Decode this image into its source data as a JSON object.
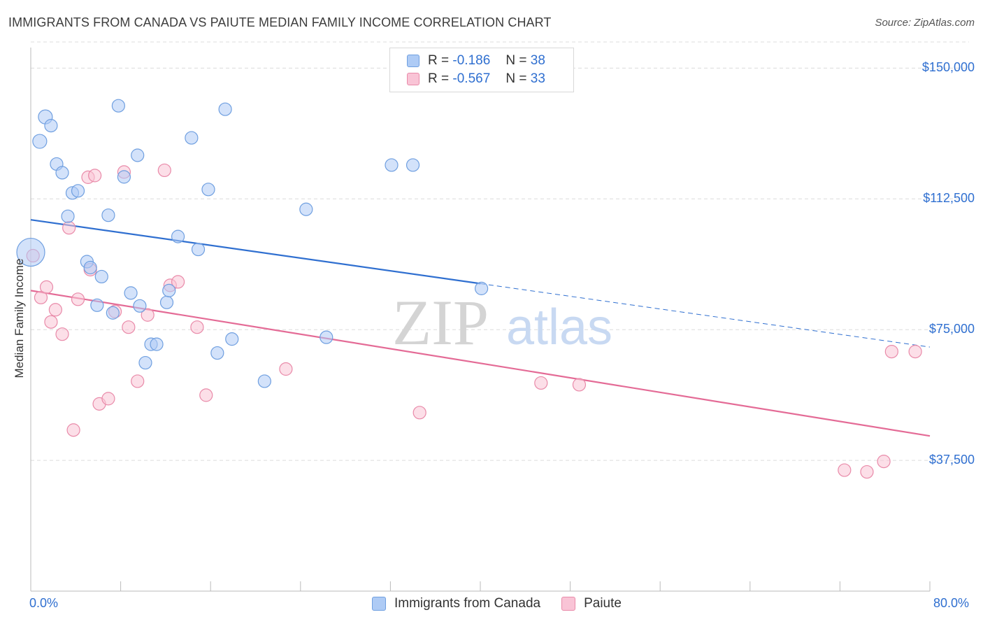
{
  "header": {
    "title": "IMMIGRANTS FROM CANADA VS PAIUTE MEDIAN FAMILY INCOME CORRELATION CHART",
    "source": "Source: ZipAtlas.com"
  },
  "watermark": {
    "zip": "ZIP",
    "atlas": "atlas"
  },
  "legend": {
    "r_label": "R =",
    "n_label": "N =",
    "rows": [
      {
        "r": "-0.186",
        "n": "38",
        "color": "#aecbf5",
        "border": "#6f9fe0"
      },
      {
        "r": "-0.567",
        "n": "33",
        "color": "#f9c4d6",
        "border": "#e98aa9"
      }
    ]
  },
  "chart_data": {
    "type": "scatter",
    "xlabel": "",
    "ylabel": "Median Family Income",
    "xlim": [
      0,
      80
    ],
    "ylim": [
      0,
      157500
    ],
    "x_tick_labels": {
      "min": "0.0%",
      "max": "80.0%"
    },
    "y_ticks": [
      {
        "value": 37500,
        "label": "$37,500"
      },
      {
        "value": 75000,
        "label": "$75,000"
      },
      {
        "value": 112500,
        "label": "$112,500"
      },
      {
        "value": 150000,
        "label": "$150,000"
      }
    ],
    "series": [
      {
        "name": "Immigrants from Canada",
        "color": "#aecbf5",
        "stroke": "#6f9fe0",
        "line_color": "#2f6fd0",
        "trend": {
          "x0": 0,
          "y0": 106500,
          "x1": 40,
          "y1": 88200,
          "dash_x1": 80,
          "dash_y1": 70000
        },
        "points": [
          [
            0.0,
            97200,
            20
          ],
          [
            0.8,
            129000,
            10
          ],
          [
            1.3,
            136000,
            10
          ],
          [
            1.8,
            133500,
            9
          ],
          [
            2.3,
            122500,
            9
          ],
          [
            2.8,
            120000,
            9
          ],
          [
            3.3,
            107500,
            9
          ],
          [
            3.7,
            114200,
            9
          ],
          [
            4.2,
            114800,
            9
          ],
          [
            5.0,
            94500,
            9
          ],
          [
            5.3,
            92800,
            9
          ],
          [
            5.9,
            82000,
            9
          ],
          [
            6.3,
            90200,
            9
          ],
          [
            6.9,
            107800,
            9
          ],
          [
            7.3,
            79800,
            9
          ],
          [
            7.8,
            139200,
            9
          ],
          [
            8.3,
            118800,
            9
          ],
          [
            8.9,
            85500,
            9
          ],
          [
            9.5,
            125000,
            9
          ],
          [
            9.7,
            81800,
            9
          ],
          [
            10.2,
            65500,
            9
          ],
          [
            10.7,
            70800,
            9
          ],
          [
            11.2,
            70800,
            9
          ],
          [
            12.1,
            82800,
            9
          ],
          [
            12.3,
            86200,
            9
          ],
          [
            13.1,
            101700,
            9
          ],
          [
            14.3,
            130000,
            9
          ],
          [
            14.9,
            98000,
            9
          ],
          [
            15.8,
            115200,
            9
          ],
          [
            16.6,
            68300,
            9
          ],
          [
            17.3,
            138200,
            9
          ],
          [
            17.9,
            72300,
            9
          ],
          [
            20.8,
            60200,
            9
          ],
          [
            24.5,
            109500,
            9
          ],
          [
            26.3,
            72800,
            9
          ],
          [
            32.1,
            122200,
            9
          ],
          [
            34.0,
            122200,
            9
          ],
          [
            40.1,
            86800,
            9
          ]
        ]
      },
      {
        "name": "Paiute",
        "color": "#f9c4d6",
        "stroke": "#e98aa9",
        "line_color": "#e46b96",
        "trend": {
          "x0": 0,
          "y0": 86200,
          "x1": 80,
          "y1": 44500
        },
        "points": [
          [
            0.2,
            96200,
            9
          ],
          [
            0.9,
            84200,
            9
          ],
          [
            1.4,
            87200,
            9
          ],
          [
            1.8,
            77200,
            9
          ],
          [
            2.2,
            80700,
            9
          ],
          [
            2.8,
            73700,
            9
          ],
          [
            3.4,
            104200,
            9
          ],
          [
            3.8,
            46200,
            9
          ],
          [
            4.2,
            83700,
            9
          ],
          [
            5.1,
            118700,
            9
          ],
          [
            5.3,
            92200,
            9
          ],
          [
            5.7,
            119200,
            9
          ],
          [
            6.1,
            53700,
            9
          ],
          [
            6.9,
            55200,
            9
          ],
          [
            7.5,
            80200,
            9
          ],
          [
            8.3,
            120200,
            9
          ],
          [
            8.7,
            75700,
            9
          ],
          [
            9.5,
            60200,
            9
          ],
          [
            10.4,
            79200,
            9
          ],
          [
            11.9,
            120700,
            9
          ],
          [
            12.4,
            87700,
            9
          ],
          [
            13.1,
            88700,
            9
          ],
          [
            14.8,
            75700,
            9
          ],
          [
            15.6,
            56200,
            9
          ],
          [
            22.7,
            63700,
            9
          ],
          [
            34.6,
            51200,
            9
          ],
          [
            45.4,
            59700,
            9
          ],
          [
            48.8,
            59200,
            9
          ],
          [
            72.4,
            34700,
            9
          ],
          [
            74.4,
            34200,
            9
          ],
          [
            75.9,
            37200,
            9
          ],
          [
            76.6,
            68700,
            9
          ],
          [
            78.7,
            68700,
            9
          ]
        ]
      }
    ]
  }
}
